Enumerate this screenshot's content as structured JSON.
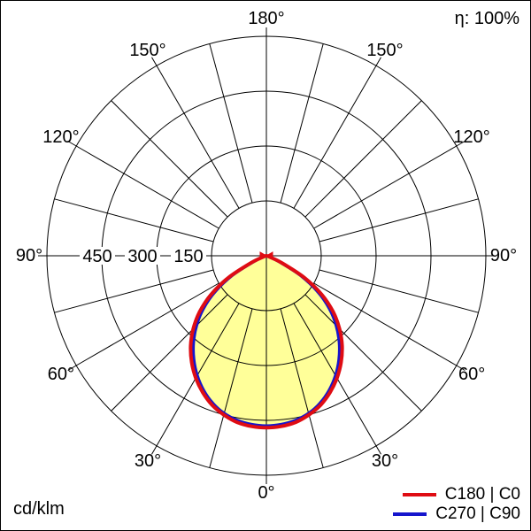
{
  "chart_data": {
    "type": "polar_intensity",
    "description": "Luminous intensity distribution polar diagram",
    "unit": "cd/klm",
    "efficiency": "η: 100%",
    "rmax": 600,
    "radial_ticks": [
      150,
      300,
      450,
      600
    ],
    "radial_tick_labels": [
      "450",
      "300",
      "150"
    ],
    "grid": {
      "spoke_step_deg": 15,
      "ring_values": [
        150,
        300,
        450,
        600
      ],
      "inner_ring": 150,
      "angle_tick_step_deg": 30
    },
    "gamma_labels": [
      {
        "text": "180°",
        "gamma": 180,
        "side": 0
      },
      {
        "text": "150°",
        "gamma": 150,
        "side": -1
      },
      {
        "text": "150°",
        "gamma": 150,
        "side": 1
      },
      {
        "text": "120°",
        "gamma": 120,
        "side": -1
      },
      {
        "text": "120°",
        "gamma": 120,
        "side": 1
      },
      {
        "text": "90°",
        "gamma": 90,
        "side": -1
      },
      {
        "text": "90°",
        "gamma": 90,
        "side": 1
      },
      {
        "text": "60°",
        "gamma": 60,
        "side": -1
      },
      {
        "text": "60°",
        "gamma": 60,
        "side": 1
      },
      {
        "text": "30°",
        "gamma": 30,
        "side": -1
      },
      {
        "text": "30°",
        "gamma": 30,
        "side": 1
      },
      {
        "text": "0°",
        "gamma": 0,
        "side": 0
      }
    ],
    "fill_color": "#ffff99",
    "series": [
      {
        "name": "C180 | C0",
        "color": "#df0c13",
        "points": [
          [
            0,
            470
          ],
          [
            5,
            468
          ],
          [
            10,
            462
          ],
          [
            15,
            450
          ],
          [
            20,
            434
          ],
          [
            25,
            412
          ],
          [
            30,
            386
          ],
          [
            35,
            356
          ],
          [
            40,
            322
          ],
          [
            45,
            283
          ],
          [
            50,
            238
          ],
          [
            55,
            185
          ],
          [
            60,
            120
          ],
          [
            65,
            48
          ],
          [
            70,
            10
          ],
          [
            75,
            3
          ],
          [
            80,
            2
          ],
          [
            85,
            1
          ],
          [
            90,
            0
          ]
        ]
      },
      {
        "name": "C270 | C90",
        "color": "#1515cd",
        "points": [
          [
            0,
            465
          ],
          [
            5,
            463
          ],
          [
            10,
            457
          ],
          [
            15,
            446
          ],
          [
            20,
            429
          ],
          [
            25,
            406
          ],
          [
            30,
            378
          ],
          [
            35,
            346
          ],
          [
            40,
            310
          ],
          [
            45,
            270
          ],
          [
            50,
            225
          ],
          [
            55,
            172
          ],
          [
            60,
            108
          ],
          [
            65,
            40
          ],
          [
            70,
            8
          ],
          [
            75,
            2
          ],
          [
            80,
            1
          ],
          [
            85,
            1
          ],
          [
            90,
            0
          ]
        ]
      }
    ]
  }
}
